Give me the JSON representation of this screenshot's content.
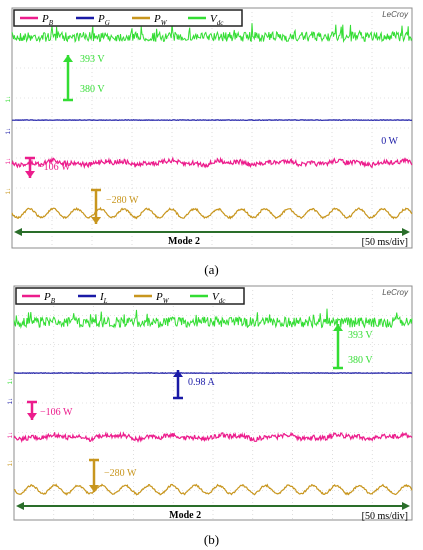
{
  "colors": {
    "pb": "#ec1c8c",
    "blue": "#1a1aa6",
    "pw": "#c8961e",
    "vdc": "#33dd33",
    "mode_arrow": "#2a6e2a",
    "grid": "#c8c8c8",
    "frame": "#8c8c8c"
  },
  "chart_data": [
    {
      "type": "line",
      "caption": "(a)",
      "brand": "LeCroy",
      "time_div": "[50 ms/div]",
      "mode_label": "Mode 2",
      "legend": [
        {
          "label": "P",
          "sub": "B",
          "color": "#ec1c8c"
        },
        {
          "label": "P",
          "sub": "G",
          "color": "#1a1aa6"
        },
        {
          "label": "P",
          "sub": "W",
          "color": "#c8961e"
        },
        {
          "label": "V",
          "sub": "dc",
          "color": "#33dd33"
        }
      ],
      "channel_markers": [
        {
          "text": "1↓",
          "color": "#33dd33",
          "y": 96
        },
        {
          "text": "1↓",
          "color": "#1a1aa6",
          "y": 128
        },
        {
          "text": "1↓",
          "color": "#ec1c8c",
          "y": 158
        },
        {
          "text": "1↓",
          "color": "#c8961e",
          "y": 188
        }
      ],
      "annotations": [
        {
          "name": "vdc-measure",
          "text": "393 V",
          "color": "#33dd33"
        },
        {
          "name": "vdc-scale",
          "text": "380 V",
          "color": "#33dd33"
        },
        {
          "name": "pg-value",
          "text": "0 W",
          "color": "#1a1aa6"
        },
        {
          "name": "pb-value",
          "text": "−106 W",
          "color": "#ec1c8c"
        },
        {
          "name": "pw-value",
          "text": "−280 W",
          "color": "#c8961e"
        }
      ],
      "series": [
        {
          "name": "Vdc",
          "value": "393 V",
          "level": 0.12,
          "noise": 0.02,
          "spikes": true,
          "ripple": 0
        },
        {
          "name": "PG",
          "value": "0 W",
          "level": 0.467,
          "noise": 0.001,
          "spikes": false,
          "ripple": 0
        },
        {
          "name": "PB",
          "value": "−106 W",
          "level": 0.645,
          "noise": 0.01,
          "spikes": false,
          "ripple": 0.004
        },
        {
          "name": "PW",
          "value": "−280 W",
          "level": 0.855,
          "noise": 0.004,
          "spikes": false,
          "ripple": 0.018
        }
      ]
    },
    {
      "type": "line",
      "caption": "(b)",
      "brand": "LeCroy",
      "time_div": "[50 ms/div]",
      "mode_label": "Mode 2",
      "legend": [
        {
          "label": "P",
          "sub": "B",
          "color": "#ec1c8c"
        },
        {
          "label": "I",
          "sub": "L",
          "color": "#1a1aa6"
        },
        {
          "label": "P",
          "sub": "W",
          "color": "#c8961e"
        },
        {
          "label": "V",
          "sub": "dc",
          "color": "#33dd33"
        }
      ],
      "channel_markers": [
        {
          "text": "1↓",
          "color": "#33dd33",
          "y": 378
        },
        {
          "text": "1↓",
          "color": "#1a1aa6",
          "y": 398
        },
        {
          "text": "1↓",
          "color": "#ec1c8c",
          "y": 432
        },
        {
          "text": "1↓",
          "color": "#c8961e",
          "y": 460
        }
      ],
      "annotations": [
        {
          "name": "vdc-measure",
          "text": "393 V",
          "color": "#33dd33"
        },
        {
          "name": "vdc-scale",
          "text": "380 V",
          "color": "#33dd33"
        },
        {
          "name": "il-value",
          "text": "0.98 A",
          "color": "#1a1aa6"
        },
        {
          "name": "pb-value",
          "text": "−106 W",
          "color": "#ec1c8c"
        },
        {
          "name": "pw-value",
          "text": "−280 W",
          "color": "#c8961e"
        }
      ],
      "series": [
        {
          "name": "Vdc",
          "value": "393 V",
          "level": 0.155,
          "noise": 0.022,
          "spikes": true,
          "ripple": 0
        },
        {
          "name": "IL",
          "value": "0.98 A",
          "level": 0.372,
          "noise": 0.001,
          "spikes": false,
          "ripple": 0
        },
        {
          "name": "PB",
          "value": "−106 W",
          "level": 0.645,
          "noise": 0.01,
          "spikes": false,
          "ripple": 0.004
        },
        {
          "name": "PW",
          "value": "−280 W",
          "level": 0.87,
          "noise": 0.004,
          "spikes": false,
          "ripple": 0.018
        }
      ]
    }
  ]
}
